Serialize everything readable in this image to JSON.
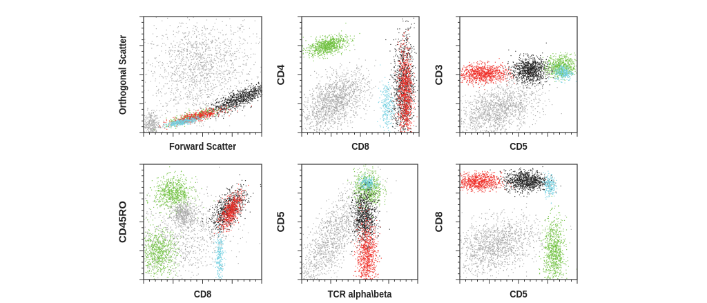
{
  "colors": {
    "gray": "#a3a3a3",
    "black": "#1c1c1c",
    "red": "#ee2b24",
    "green": "#6dbf3c",
    "cyan": "#70cfe0"
  },
  "chart_data": [
    {
      "type": "scatter",
      "xlabel": "Forward Scatter",
      "ylabel": "Orthogonal Scatter",
      "xlim": [
        0,
        1000
      ],
      "ylim": [
        0,
        1000
      ],
      "grid": false,
      "populations": [
        {
          "color": "gray",
          "center": [
            470,
            560
          ],
          "sd": [
            230,
            210
          ],
          "rho": 0.1,
          "n": 1500
        },
        {
          "color": "gray",
          "center": [
            60,
            70
          ],
          "sd": [
            35,
            60
          ],
          "rho": 0,
          "n": 300
        },
        {
          "color": "black",
          "center": [
            820,
            300
          ],
          "sd": [
            140,
            70
          ],
          "rho": 0.85,
          "n": 900
        },
        {
          "color": "green",
          "center": [
            430,
            140
          ],
          "sd": [
            120,
            40
          ],
          "rho": 0.8,
          "n": 250
        },
        {
          "color": "red",
          "center": [
            440,
            140
          ],
          "sd": [
            110,
            32
          ],
          "rho": 0.8,
          "n": 500
        },
        {
          "color": "cyan",
          "center": [
            330,
            95
          ],
          "sd": [
            75,
            20
          ],
          "rho": 0.8,
          "n": 350
        }
      ]
    },
    {
      "type": "scatter",
      "xlabel": "CD8",
      "ylabel": "CD4",
      "xlim": [
        0,
        1000
      ],
      "ylim": [
        0,
        1000
      ],
      "grid": false,
      "populations": [
        {
          "color": "gray",
          "center": [
            280,
            270
          ],
          "sd": [
            140,
            130
          ],
          "rho": 0.5,
          "n": 1500
        },
        {
          "color": "green",
          "center": [
            210,
            750
          ],
          "sd": [
            85,
            42
          ],
          "rho": 0.45,
          "n": 800
        },
        {
          "color": "black",
          "center": [
            865,
            400
          ],
          "sd": [
            45,
            230
          ],
          "rho": 0.1,
          "n": 1000
        },
        {
          "color": "cyan",
          "center": [
            720,
            230
          ],
          "sd": [
            28,
            100
          ],
          "rho": 0,
          "n": 250
        },
        {
          "color": "red",
          "center": [
            880,
            340
          ],
          "sd": [
            30,
            200
          ],
          "rho": 0,
          "n": 900
        }
      ]
    },
    {
      "type": "scatter",
      "xlabel": "CD5",
      "ylabel": "CD3",
      "xlim": [
        0,
        1000
      ],
      "ylim": [
        0,
        1000
      ],
      "grid": false,
      "populations": [
        {
          "color": "gray",
          "center": [
            320,
            200
          ],
          "sd": [
            170,
            110
          ],
          "rho": 0.4,
          "n": 1400
        },
        {
          "color": "red",
          "center": [
            200,
            510
          ],
          "sd": [
            110,
            40
          ],
          "rho": 0,
          "n": 900
        },
        {
          "color": "black",
          "center": [
            590,
            540
          ],
          "sd": [
            75,
            55
          ],
          "rho": 0,
          "n": 900
        },
        {
          "color": "green",
          "center": [
            860,
            570
          ],
          "sd": [
            60,
            50
          ],
          "rho": 0,
          "n": 600
        },
        {
          "color": "cyan",
          "center": [
            880,
            520
          ],
          "sd": [
            38,
            35
          ],
          "rho": 0,
          "n": 250
        }
      ]
    },
    {
      "type": "scatter",
      "xlabel": "CD8",
      "ylabel": "CD45RO",
      "xlim": [
        0,
        1000
      ],
      "ylim": [
        0,
        1000
      ],
      "grid": false,
      "populations": [
        {
          "color": "gray",
          "center": [
            320,
            380
          ],
          "sd": [
            200,
            200
          ],
          "rho": 0.2,
          "n": 900
        },
        {
          "color": "green",
          "center": [
            250,
            750
          ],
          "sd": [
            80,
            70
          ],
          "rho": 0,
          "n": 700
        },
        {
          "color": "gray",
          "center": [
            340,
            570
          ],
          "sd": [
            50,
            50
          ],
          "rho": 0,
          "n": 400
        },
        {
          "color": "green",
          "center": [
            120,
            240
          ],
          "sd": [
            80,
            100
          ],
          "rho": 0,
          "n": 700
        },
        {
          "color": "black",
          "center": [
            720,
            610
          ],
          "sd": [
            75,
            90
          ],
          "rho": 0.6,
          "n": 700
        },
        {
          "color": "red",
          "center": [
            735,
            600
          ],
          "sd": [
            45,
            75
          ],
          "rho": 0.6,
          "n": 600
        },
        {
          "color": "cyan",
          "center": [
            640,
            200
          ],
          "sd": [
            20,
            110
          ],
          "rho": 0,
          "n": 250
        }
      ]
    },
    {
      "type": "scatter",
      "xlabel": "TCR alpha\\beta",
      "ylabel": "CD5",
      "xlim": [
        0,
        1000
      ],
      "ylim": [
        0,
        1000
      ],
      "grid": false,
      "populations": [
        {
          "color": "gray",
          "center": [
            250,
            350
          ],
          "sd": [
            170,
            250
          ],
          "rho": 0.8,
          "n": 1400
        },
        {
          "color": "green",
          "center": [
            570,
            790
          ],
          "sd": [
            60,
            80
          ],
          "rho": 0,
          "n": 600
        },
        {
          "color": "cyan",
          "center": [
            560,
            840
          ],
          "sd": [
            38,
            28
          ],
          "rho": 0,
          "n": 200
        },
        {
          "color": "black",
          "center": [
            540,
            540
          ],
          "sd": [
            50,
            110
          ],
          "rho": 0,
          "n": 800
        },
        {
          "color": "red",
          "center": [
            560,
            200
          ],
          "sd": [
            45,
            150
          ],
          "rho": 0,
          "n": 800
        }
      ]
    },
    {
      "type": "scatter",
      "xlabel": "CD5",
      "ylabel": "CD8",
      "xlim": [
        0,
        1000
      ],
      "ylim": [
        0,
        1000
      ],
      "grid": false,
      "populations": [
        {
          "color": "gray",
          "center": [
            300,
            300
          ],
          "sd": [
            180,
            120
          ],
          "rho": 0.3,
          "n": 1400
        },
        {
          "color": "red",
          "center": [
            150,
            850
          ],
          "sd": [
            100,
            38
          ],
          "rho": 0,
          "n": 800
        },
        {
          "color": "black",
          "center": [
            560,
            860
          ],
          "sd": [
            90,
            45
          ],
          "rho": 0,
          "n": 900
        },
        {
          "color": "cyan",
          "center": [
            760,
            820
          ],
          "sd": [
            25,
            50
          ],
          "rho": 0,
          "n": 200
        },
        {
          "color": "green",
          "center": [
            800,
            230
          ],
          "sd": [
            45,
            150
          ],
          "rho": 0,
          "n": 800
        }
      ]
    }
  ]
}
